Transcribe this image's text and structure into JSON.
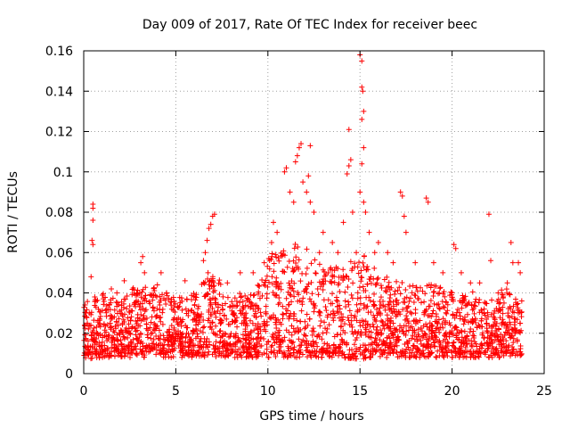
{
  "chart_data": {
    "type": "scatter",
    "title": "Day 009 of 2017, Rate Of TEC Index for receiver beec",
    "xlabel": "GPS time / hours",
    "ylabel": "ROTI / TECUs",
    "xlim": [
      0,
      25
    ],
    "ylim": [
      0,
      0.16
    ],
    "xticks": [
      0,
      5,
      10,
      15,
      20,
      25
    ],
    "xtick_labels": [
      "0",
      "5",
      "10",
      "15",
      "20",
      "25"
    ],
    "yticks": [
      0,
      0.02,
      0.04,
      0.06,
      0.08,
      0.1,
      0.12,
      0.14,
      0.16
    ],
    "ytick_labels": [
      "0",
      "0.02",
      "0.04",
      "0.06",
      "0.08",
      "0.1",
      "0.12",
      "0.14",
      "0.16"
    ],
    "grid": true,
    "marker": "+",
    "color": "#ff0000",
    "series": [
      {
        "name": "ROTI",
        "points": [
          [
            0.3,
            0.03
          ],
          [
            0.5,
            0.084
          ],
          [
            0.5,
            0.082
          ],
          [
            0.5,
            0.076
          ],
          [
            0.45,
            0.066
          ],
          [
            0.5,
            0.064
          ],
          [
            0.4,
            0.048
          ],
          [
            0.6,
            0.038
          ],
          [
            1.5,
            0.042
          ],
          [
            1.8,
            0.04
          ],
          [
            2.2,
            0.046
          ],
          [
            3.1,
            0.055
          ],
          [
            3.2,
            0.058
          ],
          [
            3.3,
            0.05
          ],
          [
            4.0,
            0.044
          ],
          [
            4.2,
            0.05
          ],
          [
            4.5,
            0.04
          ],
          [
            5.5,
            0.046
          ],
          [
            6.5,
            0.056
          ],
          [
            6.6,
            0.06
          ],
          [
            6.7,
            0.066
          ],
          [
            6.8,
            0.072
          ],
          [
            6.9,
            0.074
          ],
          [
            7.0,
            0.078
          ],
          [
            7.1,
            0.079
          ],
          [
            6.75,
            0.05
          ],
          [
            7.8,
            0.045
          ],
          [
            8.5,
            0.05
          ],
          [
            9.2,
            0.05
          ],
          [
            9.8,
            0.055
          ],
          [
            10.2,
            0.065
          ],
          [
            10.3,
            0.075
          ],
          [
            10.5,
            0.07
          ],
          [
            10.9,
            0.1
          ],
          [
            11.0,
            0.102
          ],
          [
            11.2,
            0.09
          ],
          [
            11.4,
            0.085
          ],
          [
            11.5,
            0.105
          ],
          [
            11.6,
            0.108
          ],
          [
            11.7,
            0.112
          ],
          [
            11.8,
            0.114
          ],
          [
            11.9,
            0.095
          ],
          [
            12.1,
            0.09
          ],
          [
            12.2,
            0.098
          ],
          [
            12.3,
            0.085
          ],
          [
            12.3,
            0.113
          ],
          [
            12.5,
            0.08
          ],
          [
            12.8,
            0.06
          ],
          [
            13.0,
            0.07
          ],
          [
            13.5,
            0.065
          ],
          [
            13.8,
            0.06
          ],
          [
            14.1,
            0.075
          ],
          [
            14.3,
            0.099
          ],
          [
            14.4,
            0.103
          ],
          [
            14.5,
            0.106
          ],
          [
            14.4,
            0.121
          ],
          [
            14.6,
            0.08
          ],
          [
            14.8,
            0.06
          ],
          [
            15.0,
            0.158
          ],
          [
            15.1,
            0.155
          ],
          [
            15.1,
            0.142
          ],
          [
            15.15,
            0.14
          ],
          [
            15.2,
            0.13
          ],
          [
            15.1,
            0.126
          ],
          [
            15.2,
            0.112
          ],
          [
            15.1,
            0.104
          ],
          [
            15.0,
            0.09
          ],
          [
            15.2,
            0.085
          ],
          [
            15.3,
            0.08
          ],
          [
            15.5,
            0.07
          ],
          [
            15.8,
            0.06
          ],
          [
            16.0,
            0.065
          ],
          [
            16.5,
            0.06
          ],
          [
            16.8,
            0.055
          ],
          [
            17.2,
            0.09
          ],
          [
            17.3,
            0.088
          ],
          [
            17.4,
            0.078
          ],
          [
            17.5,
            0.07
          ],
          [
            18.0,
            0.055
          ],
          [
            18.6,
            0.087
          ],
          [
            18.7,
            0.085
          ],
          [
            19.0,
            0.055
          ],
          [
            19.5,
            0.05
          ],
          [
            20.1,
            0.064
          ],
          [
            20.2,
            0.062
          ],
          [
            20.5,
            0.05
          ],
          [
            21.0,
            0.045
          ],
          [
            21.5,
            0.045
          ],
          [
            22.0,
            0.079
          ],
          [
            22.1,
            0.056
          ],
          [
            22.5,
            0.04
          ],
          [
            23.0,
            0.045
          ],
          [
            23.2,
            0.065
          ],
          [
            23.3,
            0.055
          ],
          [
            23.6,
            0.055
          ],
          [
            23.7,
            0.05
          ]
        ],
        "density_profile": {
          "hours": [
            0,
            1,
            2,
            3,
            4,
            5,
            6,
            7,
            8,
            9,
            10,
            11,
            12,
            13,
            14,
            15,
            16,
            17,
            18,
            19,
            20,
            21,
            22,
            23,
            23.8
          ],
          "band_low": [
            0.003,
            0.004,
            0.004,
            0.004,
            0.004,
            0.004,
            0.004,
            0.004,
            0.004,
            0.004,
            0.004,
            0.004,
            0.004,
            0.004,
            0.004,
            0.003,
            0.004,
            0.004,
            0.004,
            0.004,
            0.004,
            0.004,
            0.004,
            0.004,
            0.004
          ],
          "band_high": [
            0.032,
            0.035,
            0.032,
            0.04,
            0.038,
            0.033,
            0.036,
            0.045,
            0.035,
            0.034,
            0.052,
            0.06,
            0.058,
            0.048,
            0.05,
            0.055,
            0.045,
            0.04,
            0.04,
            0.038,
            0.035,
            0.035,
            0.032,
            0.038,
            0.035
          ]
        }
      }
    ]
  }
}
